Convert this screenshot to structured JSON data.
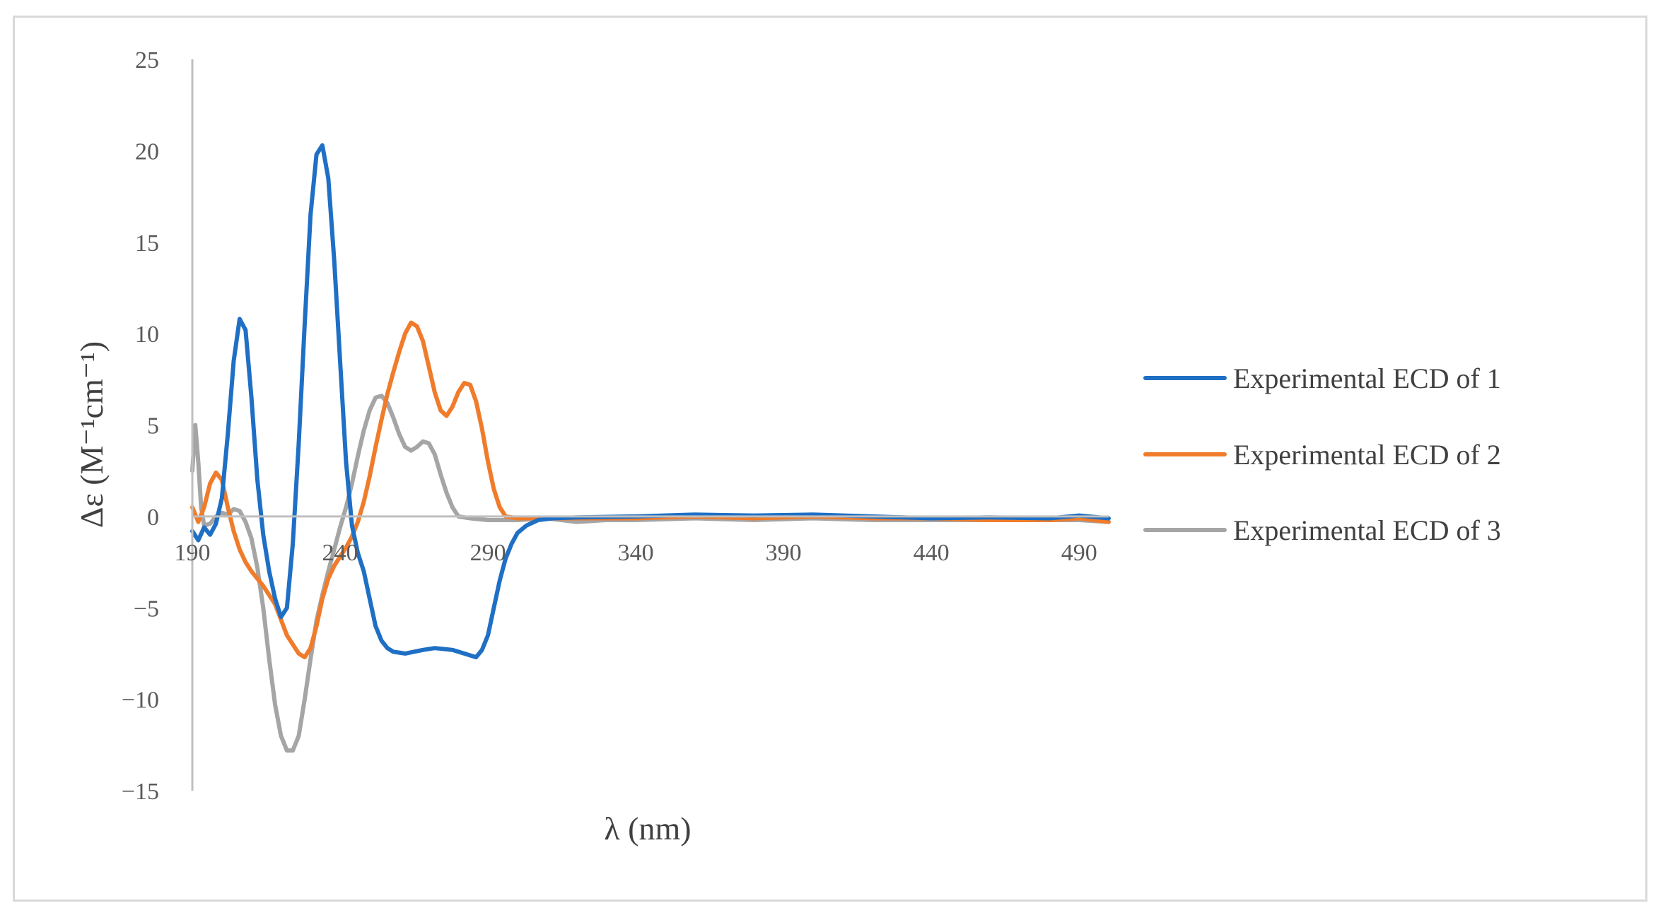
{
  "chart_data": {
    "type": "line",
    "title": "",
    "xlabel": "λ (nm)",
    "ylabel": "Δε (M⁻¹cm⁻¹)",
    "xlim": [
      190,
      500
    ],
    "ylim": [
      -15,
      25
    ],
    "x_ticks": [
      190,
      240,
      290,
      340,
      390,
      440,
      490
    ],
    "x_tick_labels": [
      "190",
      "240",
      "290",
      "340",
      "390",
      "440",
      "490"
    ],
    "y_ticks": [
      25,
      20,
      15,
      10,
      5,
      0,
      -5,
      -10,
      -15
    ],
    "y_tick_labels": [
      "25",
      "20",
      "15",
      "10",
      "5",
      "0",
      "−5",
      "−10",
      "−15"
    ],
    "grid": false,
    "legend_position": "right",
    "series": [
      {
        "name": "Experimental ECD of 1",
        "color": "#1f6fc5",
        "points": [
          [
            190,
            -0.8
          ],
          [
            192,
            -1.3
          ],
          [
            194,
            -0.6
          ],
          [
            196,
            -1.0
          ],
          [
            198,
            -0.4
          ],
          [
            200,
            1.0
          ],
          [
            202,
            4.5
          ],
          [
            204,
            8.5
          ],
          [
            206,
            10.8
          ],
          [
            208,
            10.2
          ],
          [
            210,
            6.5
          ],
          [
            212,
            2.0
          ],
          [
            214,
            -1.0
          ],
          [
            216,
            -3.0
          ],
          [
            218,
            -4.5
          ],
          [
            220,
            -5.5
          ],
          [
            222,
            -5.0
          ],
          [
            224,
            -1.5
          ],
          [
            226,
            4.0
          ],
          [
            228,
            10.5
          ],
          [
            230,
            16.5
          ],
          [
            232,
            19.8
          ],
          [
            234,
            20.3
          ],
          [
            236,
            18.5
          ],
          [
            238,
            14.0
          ],
          [
            240,
            8.5
          ],
          [
            242,
            3.0
          ],
          [
            244,
            -0.5
          ],
          [
            246,
            -2.0
          ],
          [
            248,
            -3.0
          ],
          [
            250,
            -4.5
          ],
          [
            252,
            -6.0
          ],
          [
            254,
            -6.8
          ],
          [
            256,
            -7.2
          ],
          [
            258,
            -7.4
          ],
          [
            262,
            -7.5
          ],
          [
            268,
            -7.3
          ],
          [
            272,
            -7.2
          ],
          [
            278,
            -7.3
          ],
          [
            282,
            -7.5
          ],
          [
            286,
            -7.7
          ],
          [
            288,
            -7.3
          ],
          [
            290,
            -6.5
          ],
          [
            292,
            -5.0
          ],
          [
            294,
            -3.5
          ],
          [
            296,
            -2.3
          ],
          [
            298,
            -1.5
          ],
          [
            300,
            -0.9
          ],
          [
            303,
            -0.5
          ],
          [
            307,
            -0.2
          ],
          [
            312,
            -0.1
          ],
          [
            320,
            -0.05
          ],
          [
            340,
            0.0
          ],
          [
            360,
            0.1
          ],
          [
            380,
            0.05
          ],
          [
            400,
            0.1
          ],
          [
            420,
            0.0
          ],
          [
            440,
            -0.1
          ],
          [
            460,
            -0.05
          ],
          [
            480,
            -0.1
          ],
          [
            490,
            0.05
          ],
          [
            500,
            -0.1
          ]
        ]
      },
      {
        "name": "Experimental ECD of 2",
        "color": "#f07c2b",
        "points": [
          [
            190,
            0.5
          ],
          [
            192,
            -0.3
          ],
          [
            194,
            0.5
          ],
          [
            196,
            1.8
          ],
          [
            198,
            2.4
          ],
          [
            200,
            2.0
          ],
          [
            202,
            0.5
          ],
          [
            204,
            -0.8
          ],
          [
            206,
            -1.8
          ],
          [
            208,
            -2.5
          ],
          [
            210,
            -3.0
          ],
          [
            214,
            -3.8
          ],
          [
            218,
            -4.8
          ],
          [
            222,
            -6.5
          ],
          [
            226,
            -7.5
          ],
          [
            228,
            -7.7
          ],
          [
            230,
            -7.2
          ],
          [
            232,
            -6.0
          ],
          [
            234,
            -4.5
          ],
          [
            236,
            -3.4
          ],
          [
            238,
            -2.7
          ],
          [
            240,
            -2.2
          ],
          [
            242,
            -1.7
          ],
          [
            244,
            -1.1
          ],
          [
            246,
            -0.3
          ],
          [
            248,
            0.8
          ],
          [
            250,
            2.2
          ],
          [
            252,
            3.8
          ],
          [
            254,
            5.3
          ],
          [
            256,
            6.7
          ],
          [
            258,
            7.9
          ],
          [
            260,
            9.0
          ],
          [
            262,
            10.0
          ],
          [
            264,
            10.6
          ],
          [
            266,
            10.4
          ],
          [
            268,
            9.6
          ],
          [
            270,
            8.2
          ],
          [
            272,
            6.8
          ],
          [
            274,
            5.8
          ],
          [
            276,
            5.5
          ],
          [
            278,
            6.0
          ],
          [
            280,
            6.8
          ],
          [
            282,
            7.3
          ],
          [
            284,
            7.2
          ],
          [
            286,
            6.3
          ],
          [
            288,
            4.8
          ],
          [
            290,
            3.0
          ],
          [
            292,
            1.5
          ],
          [
            294,
            0.5
          ],
          [
            296,
            0.0
          ],
          [
            300,
            -0.1
          ],
          [
            310,
            -0.1
          ],
          [
            320,
            -0.1
          ],
          [
            340,
            -0.1
          ],
          [
            360,
            0.0
          ],
          [
            380,
            -0.1
          ],
          [
            400,
            0.0
          ],
          [
            420,
            -0.1
          ],
          [
            440,
            -0.1
          ],
          [
            460,
            -0.2
          ],
          [
            480,
            -0.2
          ],
          [
            490,
            -0.1
          ],
          [
            500,
            -0.3
          ]
        ]
      },
      {
        "name": "Experimental ECD of 3",
        "color": "#a5a5a5",
        "points": [
          [
            190,
            2.5
          ],
          [
            191,
            5.0
          ],
          [
            192,
            3.0
          ],
          [
            193,
            0.5
          ],
          [
            194,
            -0.5
          ],
          [
            196,
            -0.4
          ],
          [
            198,
            0.0
          ],
          [
            200,
            0.2
          ],
          [
            202,
            0.1
          ],
          [
            204,
            0.4
          ],
          [
            206,
            0.3
          ],
          [
            208,
            -0.3
          ],
          [
            210,
            -1.2
          ],
          [
            212,
            -2.8
          ],
          [
            214,
            -5.0
          ],
          [
            216,
            -7.8
          ],
          [
            218,
            -10.3
          ],
          [
            220,
            -12.0
          ],
          [
            222,
            -12.8
          ],
          [
            224,
            -12.8
          ],
          [
            226,
            -12.0
          ],
          [
            228,
            -10.0
          ],
          [
            230,
            -7.8
          ],
          [
            232,
            -5.7
          ],
          [
            234,
            -4.3
          ],
          [
            236,
            -3.0
          ],
          [
            238,
            -1.8
          ],
          [
            240,
            -0.6
          ],
          [
            242,
            0.5
          ],
          [
            244,
            1.8
          ],
          [
            246,
            3.3
          ],
          [
            248,
            4.7
          ],
          [
            250,
            5.8
          ],
          [
            252,
            6.5
          ],
          [
            254,
            6.6
          ],
          [
            256,
            6.2
          ],
          [
            258,
            5.4
          ],
          [
            260,
            4.5
          ],
          [
            262,
            3.8
          ],
          [
            264,
            3.6
          ],
          [
            266,
            3.8
          ],
          [
            268,
            4.1
          ],
          [
            270,
            4.0
          ],
          [
            272,
            3.4
          ],
          [
            274,
            2.3
          ],
          [
            276,
            1.3
          ],
          [
            278,
            0.5
          ],
          [
            280,
            0.0
          ],
          [
            284,
            -0.1
          ],
          [
            290,
            -0.2
          ],
          [
            300,
            -0.2
          ],
          [
            310,
            -0.1
          ],
          [
            320,
            -0.3
          ],
          [
            330,
            -0.2
          ],
          [
            340,
            -0.2
          ],
          [
            360,
            -0.1
          ],
          [
            380,
            -0.2
          ],
          [
            400,
            -0.1
          ],
          [
            420,
            -0.2
          ],
          [
            440,
            -0.2
          ],
          [
            460,
            -0.2
          ],
          [
            480,
            -0.2
          ],
          [
            490,
            -0.2
          ],
          [
            500,
            -0.3
          ]
        ]
      }
    ]
  }
}
